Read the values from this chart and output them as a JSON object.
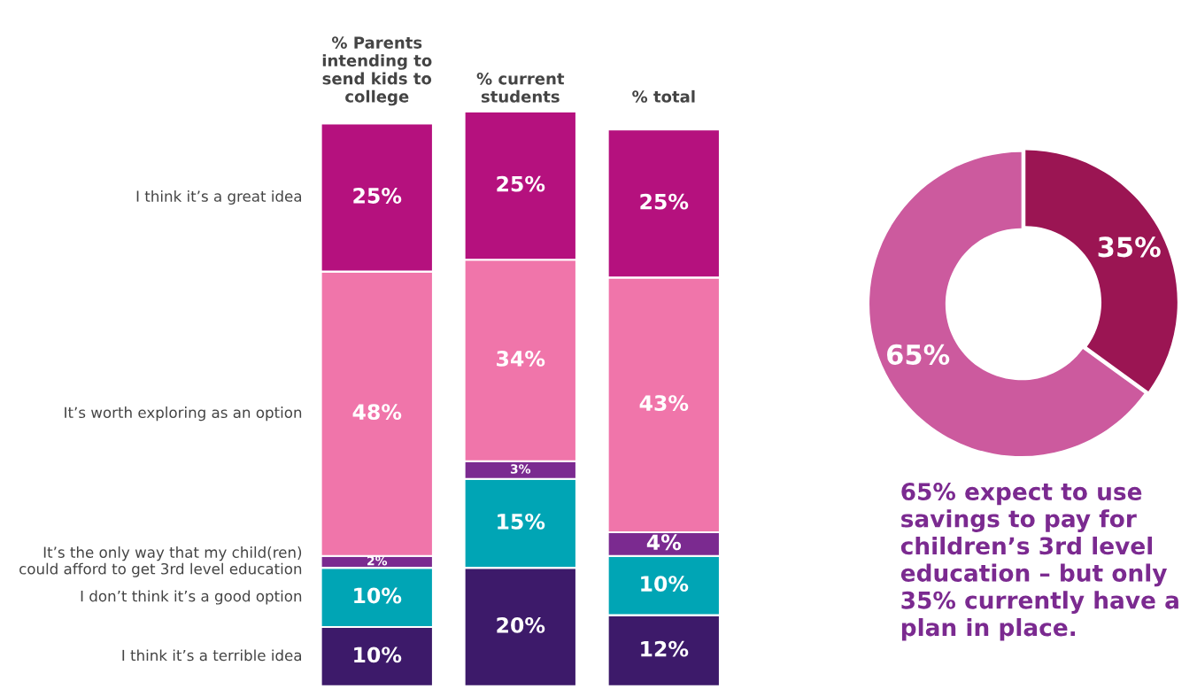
{
  "chart_data": [
    {
      "type": "bar",
      "stacked": true,
      "categories": [
        "% Parents\nintending to\nsend kids to\ncollege",
        "% current\nstudents",
        "% total"
      ],
      "series": [
        {
          "name": "I think it’s a terrible idea",
          "color": "#3d1a6a",
          "values": [
            10,
            20,
            12
          ],
          "value_labels": [
            "10%",
            "20%",
            "12%"
          ]
        },
        {
          "name": "I don’t think it’s a good option",
          "color": "#00a5b5",
          "values": [
            10,
            15,
            10
          ],
          "value_labels": [
            "10%",
            "15%",
            "10%"
          ]
        },
        {
          "name": "It’s the only way that my child(ren)\ncould afford to get 3rd level education",
          "color": "#7b2a90",
          "values": [
            2,
            3,
            4
          ],
          "value_labels": [
            "2%",
            "3%",
            "4%"
          ]
        },
        {
          "name": "It’s worth exploring as an option",
          "color": "#f075aa",
          "values": [
            48,
            34,
            43
          ],
          "value_labels": [
            "48%",
            "34%",
            "43%"
          ]
        },
        {
          "name": "I think it’s a great idea",
          "color": "#b5117e",
          "values": [
            25,
            25,
            25
          ],
          "value_labels": [
            "25%",
            "25%",
            "25%"
          ]
        }
      ]
    },
    {
      "type": "donut",
      "categories": [
        null,
        null
      ],
      "values": [
        35,
        65
      ],
      "colors": [
        "#9b1553",
        "#cc5a9e"
      ],
      "value_labels": [
        "35%",
        "65%"
      ],
      "annotations": [
        "65% expect to use\nsavings to pay for\nchildren’s 3rd level\neducation – but only\n35% currently have a\nplan in place."
      ]
    }
  ]
}
